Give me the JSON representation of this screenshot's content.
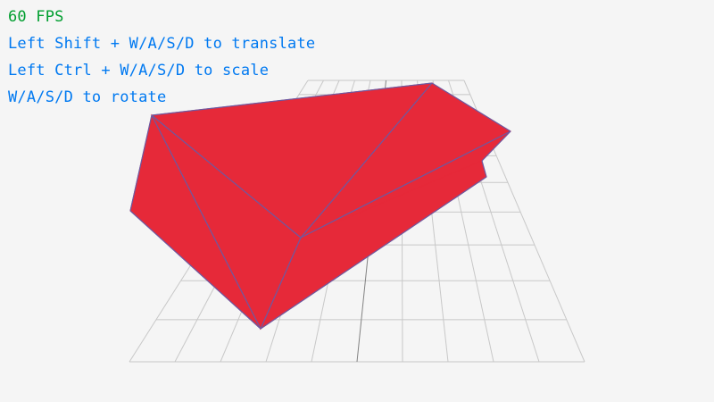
{
  "hud": {
    "fps": "60 FPS",
    "instructions": [
      "Left Shift + W/A/S/D to translate",
      "Left Ctrl + W/A/S/D to scale",
      "W/A/S/D to rotate"
    ]
  },
  "colors": {
    "background": "#f5f5f5",
    "fps_text": "#009e2f",
    "instruction_text": "#0079f1",
    "mesh_fill": "#e62939",
    "mesh_wire": "#6b5aa3",
    "grid_line": "#c8c8c8",
    "grid_axis": "#828282"
  },
  "scene": {
    "object": "polyhedron-mesh",
    "grid": "ground-plane-grid"
  }
}
